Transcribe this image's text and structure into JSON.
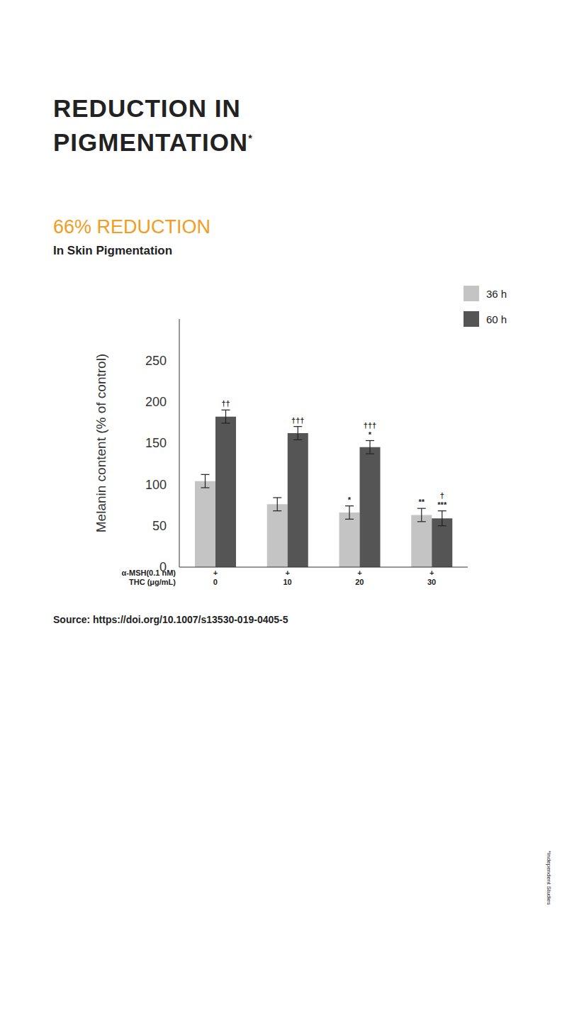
{
  "chart_data": {
    "type": "bar",
    "title": "REDUCTION IN PIGMENTATION",
    "title_mark": "*",
    "headline": "66% REDUCTION",
    "subtitle": "In Skin Pigmentation",
    "y_label": "Melanin content (% of control)",
    "row_labels": [
      "α-MSH(0.1 nM)",
      "THC (μg/mL)"
    ],
    "alpha_msh": [
      "+",
      "+",
      "+",
      "+"
    ],
    "categories": [
      "0",
      "10",
      "20",
      "30"
    ],
    "series": [
      {
        "name": "36 h",
        "color": "#c4c4c4",
        "values": [
          104,
          76,
          66,
          63
        ],
        "errors": [
          8,
          8,
          8,
          8
        ],
        "significance": [
          [],
          [],
          [
            "*"
          ],
          [
            "**"
          ]
        ]
      },
      {
        "name": "60 h",
        "color": "#555555",
        "values": [
          182,
          162,
          145,
          59
        ],
        "errors": [
          8,
          8,
          8,
          9
        ],
        "significance": [
          [
            "††"
          ],
          [
            "†††"
          ],
          [
            "†††",
            "*"
          ],
          [
            "†",
            "***"
          ]
        ]
      }
    ],
    "ylim": [
      0,
      300
    ],
    "yticks": [
      0,
      50,
      100,
      150,
      200,
      250
    ],
    "grid": false,
    "legend": "upper right",
    "source": "Source: https://doi.org/10.1007/s13530-019-0405-5",
    "footnote": "*Independent Studies"
  }
}
